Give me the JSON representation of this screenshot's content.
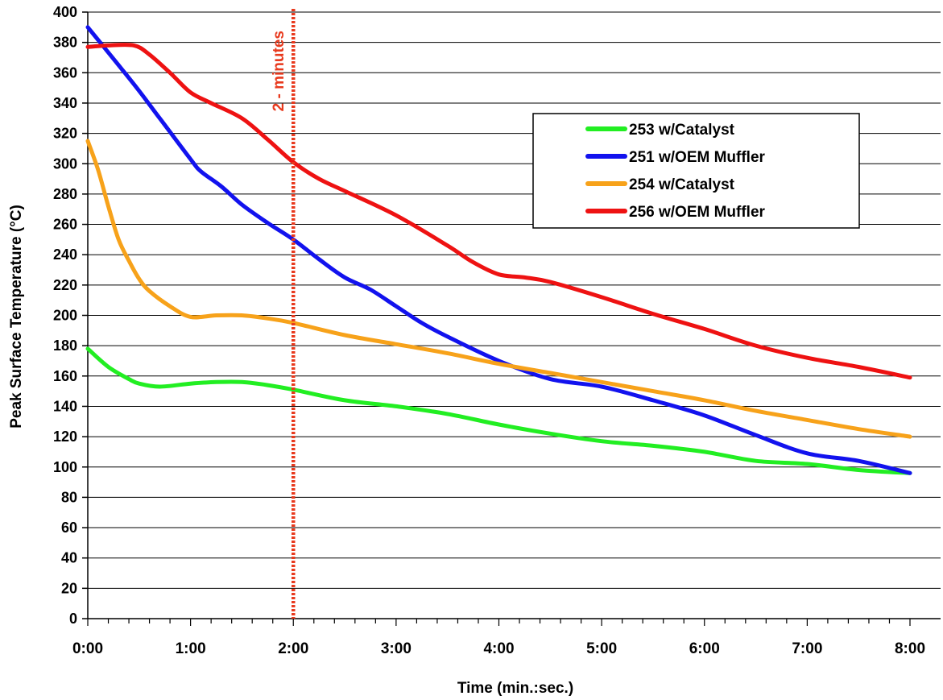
{
  "chart_data": {
    "type": "line",
    "title": "",
    "xlabel": "Time (min.:sec.)",
    "ylabel": "Peak Surface Temperature (°C)",
    "x_unit": "minutes",
    "xlim": [
      0,
      8
    ],
    "ylim": [
      0,
      400
    ],
    "x_ticks": [
      0,
      1,
      2,
      3,
      4,
      5,
      6,
      7,
      8
    ],
    "x_tick_labels": [
      "0:00",
      "1:00",
      "2:00",
      "3:00",
      "4:00",
      "5:00",
      "6:00",
      "7:00",
      "8:00"
    ],
    "y_ticks": [
      0,
      20,
      40,
      60,
      80,
      100,
      120,
      140,
      160,
      180,
      200,
      220,
      240,
      260,
      280,
      300,
      320,
      340,
      360,
      380,
      400
    ],
    "grid": "horizontal",
    "legend_position": "right",
    "annotation": {
      "text": "2 - minutes",
      "x": 2,
      "color": "#e8391d",
      "style": "dotted vertical line"
    },
    "series": [
      {
        "name": "253 w/Catalyst",
        "color": "#22ee22",
        "x": [
          0,
          0.2,
          0.4,
          0.5,
          0.7,
          1.0,
          1.25,
          1.5,
          1.75,
          2.0,
          2.5,
          3.0,
          3.5,
          4.0,
          4.5,
          5.0,
          5.5,
          6.0,
          6.5,
          7.0,
          7.5,
          8.0
        ],
        "y": [
          178,
          166,
          158,
          155,
          153,
          155,
          156,
          156,
          154,
          151,
          144,
          140,
          135,
          128,
          122,
          117,
          114,
          110,
          104,
          102,
          98,
          96
        ]
      },
      {
        "name": "251 w/OEM Muffler",
        "color": "#1212ee",
        "x": [
          0,
          0.3,
          0.5,
          0.7,
          1.0,
          1.1,
          1.3,
          1.5,
          1.75,
          2.0,
          2.25,
          2.5,
          2.75,
          3.0,
          3.25,
          3.5,
          4.0,
          4.5,
          5.0,
          5.5,
          6.0,
          6.5,
          7.0,
          7.5,
          8.0
        ],
        "y": [
          390,
          365,
          348,
          330,
          303,
          295,
          285,
          273,
          261,
          250,
          237,
          225,
          217,
          206,
          195,
          186,
          170,
          158,
          153,
          144,
          134,
          121,
          109,
          104,
          96
        ]
      },
      {
        "name": "254 w/Catalyst",
        "color": "#f7a21a",
        "x": [
          0,
          0.1,
          0.2,
          0.3,
          0.4,
          0.5,
          0.6,
          0.8,
          1.0,
          1.25,
          1.5,
          1.75,
          2.0,
          2.5,
          3.0,
          3.5,
          4.0,
          4.5,
          5.0,
          5.5,
          6.0,
          6.5,
          7.0,
          7.5,
          8.0
        ],
        "y": [
          315,
          296,
          272,
          250,
          236,
          224,
          216,
          206,
          199,
          200,
          200,
          198,
          195,
          187,
          181,
          175,
          168,
          162,
          156,
          150,
          144,
          137,
          131,
          125,
          120
        ]
      },
      {
        "name": "256 w/OEM Muffler",
        "color": "#ee1212",
        "x": [
          0,
          0.2,
          0.45,
          0.6,
          0.8,
          1.0,
          1.2,
          1.5,
          1.75,
          2.0,
          2.25,
          2.5,
          3.0,
          3.5,
          3.75,
          4.0,
          4.25,
          4.5,
          5.0,
          5.5,
          6.0,
          6.5,
          7.0,
          7.5,
          8.0
        ],
        "y": [
          377,
          378,
          378,
          372,
          360,
          347,
          340,
          330,
          316,
          301,
          290,
          282,
          266,
          246,
          235,
          227,
          225,
          222,
          212,
          201,
          191,
          180,
          172,
          166,
          159
        ]
      }
    ]
  }
}
